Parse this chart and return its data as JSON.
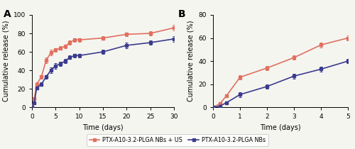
{
  "panel_A": {
    "us_x": [
      0,
      0.5,
      1,
      2,
      3,
      4,
      5,
      6,
      7,
      8,
      9,
      10,
      15,
      20,
      25,
      30
    ],
    "us_y": [
      0,
      9,
      25,
      33,
      51,
      59,
      62,
      64,
      66,
      70,
      73,
      73,
      75,
      79,
      80,
      86
    ],
    "us_err": [
      0,
      1,
      2,
      2,
      3,
      3,
      2,
      2,
      2,
      2,
      2,
      2,
      2,
      2,
      2,
      3
    ],
    "nb_x": [
      0,
      0.5,
      1,
      2,
      3,
      4,
      5,
      6,
      7,
      8,
      9,
      10,
      15,
      20,
      25,
      30
    ],
    "nb_y": [
      0,
      5,
      21,
      25,
      33,
      40,
      45,
      47,
      50,
      54,
      56,
      56,
      60,
      67,
      70,
      74
    ],
    "nb_err": [
      0,
      1,
      2,
      2,
      2,
      3,
      3,
      2,
      2,
      2,
      2,
      2,
      2,
      3,
      2,
      3
    ],
    "xlim": [
      0,
      30
    ],
    "ylim": [
      0,
      100
    ],
    "xticks": [
      0,
      5,
      10,
      15,
      20,
      25,
      30
    ],
    "yticks": [
      0,
      20,
      40,
      60,
      80,
      100
    ],
    "xlabel": "Time (days)",
    "ylabel": "Cumulative release (%)",
    "label": "A"
  },
  "panel_B": {
    "us_x": [
      0,
      0.25,
      0.5,
      1,
      2,
      3,
      4,
      5
    ],
    "us_y": [
      0,
      3,
      10,
      26,
      34,
      43,
      54,
      60
    ],
    "us_err": [
      0,
      1,
      1,
      2,
      2,
      2,
      2,
      2
    ],
    "nb_x": [
      0,
      0.25,
      0.5,
      1,
      2,
      3,
      4,
      5
    ],
    "nb_y": [
      0,
      1,
      4,
      11,
      18,
      27,
      33,
      40
    ],
    "nb_err": [
      0,
      1,
      1,
      2,
      2,
      2,
      2,
      2
    ],
    "xlim": [
      0,
      5
    ],
    "ylim": [
      0,
      80
    ],
    "xticks": [
      0,
      1,
      2,
      3,
      4,
      5
    ],
    "yticks": [
      0,
      20,
      40,
      60,
      80
    ],
    "xlabel": "Time (days)",
    "ylabel": "Cumulative release (%)",
    "label": "B"
  },
  "us_color": "#E07060",
  "nb_color": "#3B3B8E",
  "us_label": "PTX-A10-3.2-PLGA NBs + US",
  "nb_label": "PTX-A10-3.2-PLGA NBs",
  "linewidth": 1.2,
  "markersize": 3.2,
  "bg_color": "#F5F5F0",
  "fig_bg": "#F5F5F0"
}
